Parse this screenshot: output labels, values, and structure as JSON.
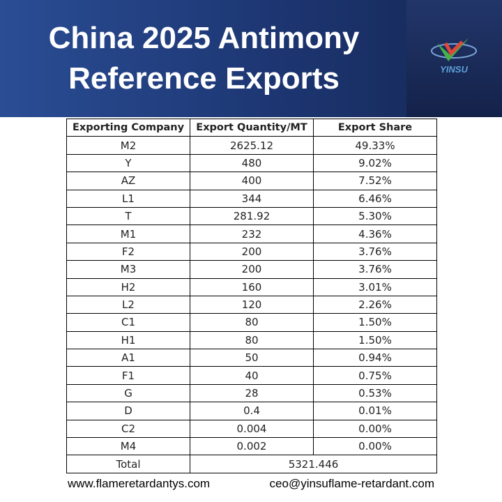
{
  "header": {
    "title_lines": [
      "China 2025 Antimony",
      "Reference Exports"
    ],
    "logo_text": "YINSU"
  },
  "table": {
    "columns": [
      "Exporting Company",
      "Export Quantity/MT",
      "Export Share"
    ],
    "rows": [
      [
        "M2",
        "2625.12",
        "49.33%"
      ],
      [
        "Y",
        "480",
        "9.02%"
      ],
      [
        "AZ",
        "400",
        "7.52%"
      ],
      [
        "L1",
        "344",
        "6.46%"
      ],
      [
        "T",
        "281.92",
        "5.30%"
      ],
      [
        "M1",
        "232",
        "4.36%"
      ],
      [
        "F2",
        "200",
        "3.76%"
      ],
      [
        "M3",
        "200",
        "3.76%"
      ],
      [
        "H2",
        "160",
        "3.01%"
      ],
      [
        "L2",
        "120",
        "2.26%"
      ],
      [
        "C1",
        "80",
        "1.50%"
      ],
      [
        "H1",
        "80",
        "1.50%"
      ],
      [
        "A1",
        "50",
        "0.94%"
      ],
      [
        "F1",
        "40",
        "0.75%"
      ],
      [
        "G",
        "28",
        "0.53%"
      ],
      [
        "D",
        "0.4",
        "0.01%"
      ],
      [
        "C2",
        "0.004",
        "0.00%"
      ],
      [
        "M4",
        "0.002",
        "0.00%"
      ]
    ],
    "total": {
      "label": "Total",
      "value": "5321.446"
    }
  },
  "footer": {
    "website": "www.flameretardantys.com",
    "email": "ceo@yinsuflame-retardant.com"
  }
}
